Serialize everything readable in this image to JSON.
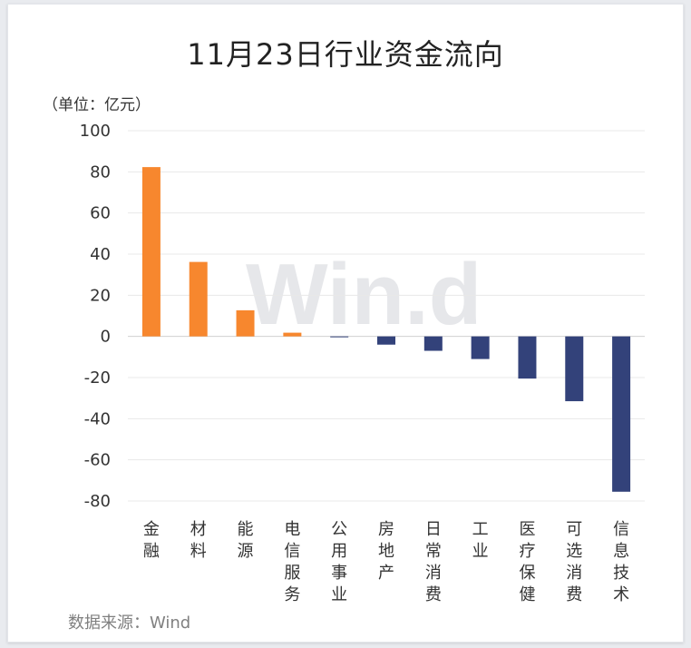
{
  "title": "11月23日行业资金流向",
  "unit_label": "（单位：亿元）",
  "source": "数据来源：Wind",
  "watermark": "Win.d",
  "colors": {
    "positive": "#f7872e",
    "negative": "#33427a",
    "grid": "#e8e8e8"
  },
  "chart_data": {
    "type": "bar",
    "title": "11月23日行业资金流向",
    "ylabel": "（单位：亿元）",
    "categories": [
      "金融",
      "材料",
      "能源",
      "电信服务",
      "公用事业",
      "房地产",
      "日常消费",
      "工业",
      "医疗保健",
      "可选消费",
      "信息技术"
    ],
    "values": [
      82.3,
      36.2,
      12.7,
      1.8,
      -0.4,
      -4.0,
      -7.0,
      -11.0,
      -20.5,
      -31.5,
      -75.5
    ],
    "ylim": [
      -80,
      100
    ],
    "yticks": [
      100,
      80,
      60,
      40,
      20,
      0,
      -20,
      -40,
      -60,
      -80
    ],
    "grid": true,
    "legend": "none"
  }
}
